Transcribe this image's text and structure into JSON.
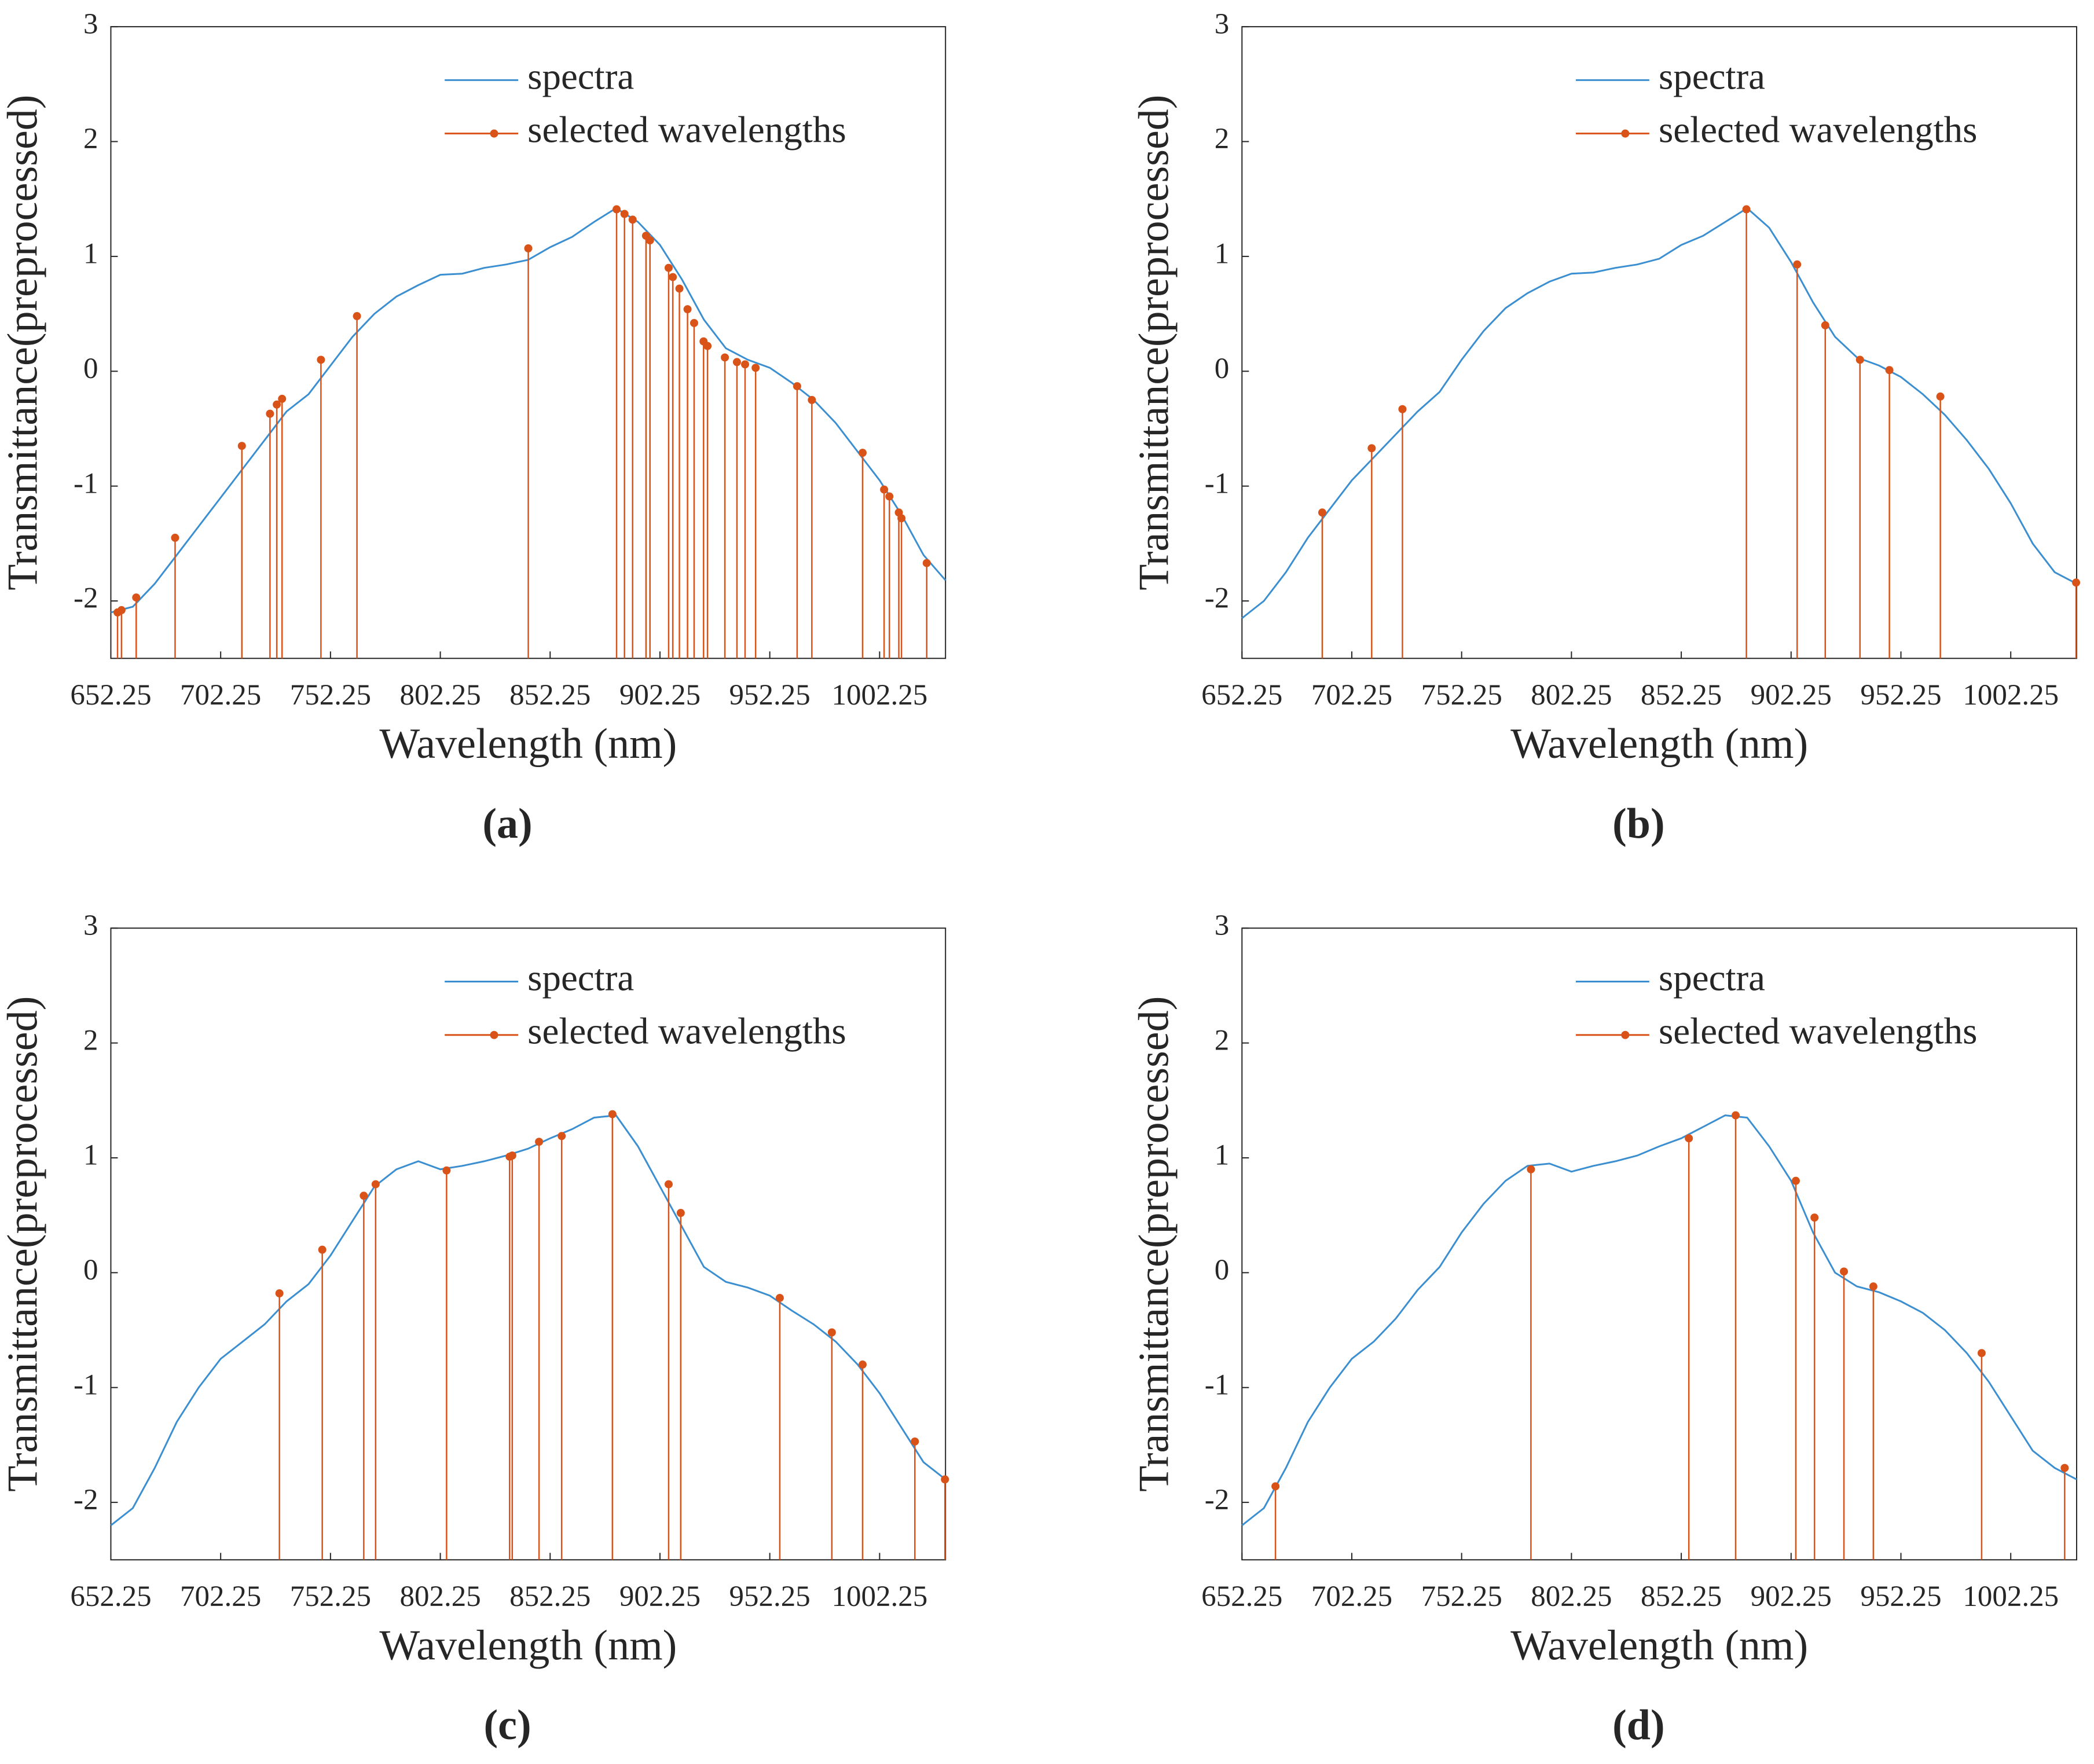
{
  "chart_data": [
    {
      "type": "line",
      "panel": "(a)",
      "xlabel": "Wavelength (nm)",
      "ylabel": "Transmittance(preprocessed)",
      "xlim": [
        652.25,
        1032.25
      ],
      "ylim": [
        -2.5,
        3
      ],
      "xticks": [
        652.25,
        702.25,
        752.25,
        802.25,
        852.25,
        902.25,
        952.25,
        1002.25
      ],
      "yticks": [
        -2,
        -1,
        0,
        1,
        2,
        3
      ],
      "series": [
        {
          "name": "spectra",
          "color": "#3b8fd0",
          "x": [
            652.25,
            662.25,
            672.25,
            682.25,
            692.25,
            702.25,
            712.25,
            722.25,
            732.25,
            742.25,
            752.25,
            762.25,
            772.25,
            782.25,
            792.25,
            802.25,
            812.25,
            822.25,
            832.25,
            842.25,
            852.25,
            862.25,
            872.25,
            882.25,
            892.25,
            902.25,
            912.25,
            922.25,
            932.25,
            942.25,
            952.25,
            962.25,
            972.25,
            982.25,
            992.25,
            1002.25,
            1012.25,
            1022.25,
            1032.25
          ],
          "values": [
            -2.1,
            -2.05,
            -1.85,
            -1.6,
            -1.35,
            -1.1,
            -0.85,
            -0.6,
            -0.35,
            -0.2,
            0.05,
            0.3,
            0.5,
            0.65,
            0.75,
            0.84,
            0.85,
            0.9,
            0.93,
            0.97,
            1.08,
            1.17,
            1.3,
            1.42,
            1.3,
            1.1,
            0.8,
            0.45,
            0.2,
            0.1,
            0.03,
            -0.1,
            -0.25,
            -0.45,
            -0.7,
            -0.95,
            -1.25,
            -1.6,
            -1.82
          ]
        },
        {
          "name": "selected wavelengths",
          "type": "stem",
          "color": "#d95319",
          "x": [
            655.3,
            657.1,
            663.8,
            681.5,
            711.9,
            724.7,
            727.8,
            730.2,
            747.9,
            764.3,
            842.3,
            882.5,
            886.1,
            889.8,
            895.9,
            897.7,
            906.2,
            908.1,
            911.1,
            914.8,
            917.8,
            922.1,
            923.9,
            931.8,
            937.3,
            941.0,
            945.8,
            964.7,
            971.4,
            994.5,
            1004.3,
            1006.7,
            1011.0,
            1012.2,
            1023.7
          ],
          "values": [
            -2.1,
            -2.08,
            -1.97,
            -1.45,
            -0.65,
            -0.37,
            -0.29,
            -0.24,
            0.1,
            0.48,
            1.07,
            1.41,
            1.37,
            1.32,
            1.18,
            1.14,
            0.9,
            0.82,
            0.72,
            0.54,
            0.42,
            0.26,
            0.22,
            0.12,
            0.08,
            0.06,
            0.03,
            -0.13,
            -0.25,
            -0.71,
            -1.03,
            -1.09,
            -1.23,
            -1.28,
            -1.67
          ]
        }
      ]
    },
    {
      "type": "line",
      "panel": "(b)",
      "xlabel": "Wavelength (nm)",
      "ylabel": "Transmittance(preprocessed)",
      "xlim": [
        652.25,
        1032.25
      ],
      "ylim": [
        -2.5,
        3
      ],
      "xticks": [
        652.25,
        702.25,
        752.25,
        802.25,
        852.25,
        902.25,
        952.25,
        1002.25
      ],
      "yticks": [
        -2,
        -1,
        0,
        1,
        2,
        3
      ],
      "series": [
        {
          "name": "spectra",
          "color": "#3b8fd0",
          "x": [
            652.25,
            662.25,
            672.25,
            682.25,
            692.25,
            702.25,
            712.25,
            722.25,
            732.25,
            742.25,
            752.25,
            762.25,
            772.25,
            782.25,
            792.25,
            802.25,
            812.25,
            822.25,
            832.25,
            842.25,
            852.25,
            862.25,
            872.25,
            882.25,
            892.25,
            902.25,
            912.25,
            922.25,
            932.25,
            942.25,
            952.25,
            962.25,
            972.25,
            982.25,
            992.25,
            1002.25,
            1012.25,
            1022.25,
            1032.25
          ],
          "values": [
            -2.15,
            -2.0,
            -1.75,
            -1.45,
            -1.2,
            -0.95,
            -0.75,
            -0.55,
            -0.35,
            -0.18,
            0.1,
            0.35,
            0.55,
            0.68,
            0.78,
            0.85,
            0.86,
            0.9,
            0.93,
            0.98,
            1.1,
            1.18,
            1.3,
            1.42,
            1.25,
            0.95,
            0.6,
            0.3,
            0.12,
            0.05,
            -0.05,
            -0.2,
            -0.38,
            -0.6,
            -0.85,
            -1.15,
            -1.5,
            -1.75,
            -1.85
          ]
        },
        {
          "name": "selected wavelengths",
          "type": "stem",
          "color": "#d95319",
          "x": [
            688.8,
            711.3,
            725.3,
            881.9,
            905.0,
            917.8,
            933.6,
            947.0,
            970.2,
            1032.0
          ],
          "values": [
            -1.23,
            -0.67,
            -0.33,
            1.41,
            0.93,
            0.4,
            0.1,
            0.01,
            -0.22,
            -1.84
          ]
        }
      ]
    },
    {
      "type": "line",
      "panel": "(c)",
      "xlabel": "Wavelength (nm)",
      "ylabel": "Transmittance(preprocessed)",
      "xlim": [
        652.25,
        1032.25
      ],
      "ylim": [
        -2.5,
        3
      ],
      "xticks": [
        652.25,
        702.25,
        752.25,
        802.25,
        852.25,
        902.25,
        952.25,
        1002.25
      ],
      "yticks": [
        -2,
        -1,
        0,
        1,
        2,
        3
      ],
      "series": [
        {
          "name": "spectra",
          "color": "#3b8fd0",
          "x": [
            652.25,
            662.25,
            672.25,
            682.25,
            692.25,
            702.25,
            712.25,
            722.25,
            732.25,
            742.25,
            752.25,
            762.25,
            772.25,
            782.25,
            792.25,
            802.25,
            812.25,
            822.25,
            832.25,
            842.25,
            852.25,
            862.25,
            872.25,
            882.25,
            892.25,
            902.25,
            912.25,
            922.25,
            932.25,
            942.25,
            952.25,
            962.25,
            972.25,
            982.25,
            992.25,
            1002.25,
            1012.25,
            1022.25,
            1032.25
          ],
          "values": [
            -2.2,
            -2.05,
            -1.7,
            -1.3,
            -1.0,
            -0.75,
            -0.6,
            -0.45,
            -0.25,
            -0.1,
            0.15,
            0.45,
            0.75,
            0.9,
            0.97,
            0.9,
            0.93,
            0.97,
            1.02,
            1.08,
            1.17,
            1.25,
            1.35,
            1.37,
            1.1,
            0.75,
            0.4,
            0.05,
            -0.08,
            -0.13,
            -0.2,
            -0.33,
            -0.45,
            -0.6,
            -0.8,
            -1.05,
            -1.35,
            -1.65,
            -1.8
          ]
        },
        {
          "name": "selected wavelengths",
          "type": "stem",
          "color": "#d95319",
          "x": [
            729.0,
            748.5,
            767.4,
            772.8,
            805.1,
            833.8,
            835.0,
            847.2,
            857.5,
            880.6,
            906.2,
            911.7,
            956.8,
            980.5,
            994.5,
            1018.3,
            1032.0
          ],
          "values": [
            -0.18,
            0.2,
            0.67,
            0.77,
            0.89,
            1.01,
            1.02,
            1.14,
            1.19,
            1.38,
            0.77,
            0.52,
            -0.22,
            -0.52,
            -0.8,
            -1.47,
            -1.8
          ]
        }
      ]
    },
    {
      "type": "line",
      "panel": "(d)",
      "xlabel": "Wavelength (nm)",
      "ylabel": "Transmittance(preprocessed)",
      "xlim": [
        652.25,
        1032.25
      ],
      "ylim": [
        -2.5,
        3
      ],
      "xticks": [
        652.25,
        702.25,
        752.25,
        802.25,
        852.25,
        902.25,
        952.25,
        1002.25
      ],
      "yticks": [
        -2,
        -1,
        0,
        1,
        2,
        3
      ],
      "series": [
        {
          "name": "spectra",
          "color": "#3b8fd0",
          "x": [
            652.25,
            662.25,
            672.25,
            682.25,
            692.25,
            702.25,
            712.25,
            722.25,
            732.25,
            742.25,
            752.25,
            762.25,
            772.25,
            782.25,
            792.25,
            802.25,
            812.25,
            822.25,
            832.25,
            842.25,
            852.25,
            862.25,
            872.25,
            882.25,
            892.25,
            902.25,
            912.25,
            922.25,
            932.25,
            942.25,
            952.25,
            962.25,
            972.25,
            982.25,
            992.25,
            1002.25,
            1012.25,
            1022.25,
            1032.25
          ],
          "values": [
            -2.2,
            -2.05,
            -1.7,
            -1.3,
            -1.0,
            -0.75,
            -0.6,
            -0.4,
            -0.15,
            0.05,
            0.35,
            0.6,
            0.8,
            0.93,
            0.95,
            0.88,
            0.93,
            0.97,
            1.02,
            1.1,
            1.17,
            1.27,
            1.37,
            1.35,
            1.1,
            0.8,
            0.35,
            0.0,
            -0.12,
            -0.17,
            -0.25,
            -0.35,
            -0.5,
            -0.7,
            -0.95,
            -1.25,
            -1.55,
            -1.7,
            -1.8
          ]
        },
        {
          "name": "selected wavelengths",
          "type": "stem",
          "color": "#d95319",
          "x": [
            667.5,
            783.8,
            855.7,
            877.0,
            904.4,
            912.9,
            926.3,
            939.7,
            989.0,
            1026.8
          ],
          "values": [
            -1.86,
            0.9,
            1.17,
            1.37,
            0.8,
            0.48,
            0.01,
            -0.12,
            -0.7,
            -1.7
          ]
        }
      ]
    }
  ]
}
